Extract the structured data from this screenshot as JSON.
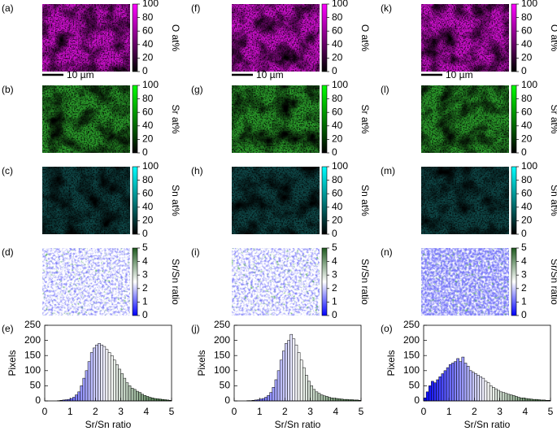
{
  "maps": {
    "panel_letters": [
      [
        "(a)",
        "(b)",
        "(c)",
        "(d)"
      ],
      [
        "(f)",
        "(g)",
        "(h)",
        "(i)"
      ],
      [
        "(k)",
        "(l)",
        "(m)",
        "(n)"
      ]
    ],
    "scale_bar": "10 µm",
    "colorbars": [
      {
        "label": "O at%",
        "range": [
          0,
          100
        ],
        "ticks": [
          0,
          20,
          40,
          60,
          80,
          100
        ],
        "colors": [
          "#000000",
          "#ff00ff"
        ]
      },
      {
        "label": "Sr at%",
        "range": [
          0,
          100
        ],
        "ticks": [
          0,
          20,
          40,
          60,
          80,
          100
        ],
        "colors": [
          "#000000",
          "#00ff00"
        ]
      },
      {
        "label": "Sn at%",
        "range": [
          0,
          100
        ],
        "ticks": [
          0,
          20,
          40,
          60,
          80,
          100
        ],
        "colors": [
          "#000000",
          "#00ffff"
        ]
      },
      {
        "label": "Sr/Sn ratio",
        "range": [
          0,
          5
        ],
        "ticks": [
          0,
          1,
          2,
          3,
          4,
          5
        ],
        "colors": [
          "#0000ff",
          "#ffffff",
          "#1e5a1e"
        ]
      }
    ]
  },
  "chart_data": [
    {
      "type": "histogram",
      "panel": "(e)",
      "xlabel": "Sr/Sn ratio",
      "ylabel": "Pixels",
      "bins": [
        0,
        0.1,
        0.2,
        0.3,
        0.4,
        0.5,
        0.6,
        0.7,
        0.8,
        0.9,
        1,
        1.1,
        1.2,
        1.3,
        1.4,
        1.5,
        1.6,
        1.7,
        1.8,
        1.9,
        2,
        2.1,
        2.2,
        2.3,
        2.4,
        2.5,
        2.6,
        2.7,
        2.8,
        2.9,
        3,
        3.1,
        3.2,
        3.3,
        3.4,
        3.5,
        3.6,
        3.7,
        3.8,
        3.9,
        4,
        4.1,
        4.2,
        4.3,
        4.4,
        4.5,
        4.6,
        4.7,
        4.8,
        4.9,
        5
      ],
      "counts": [
        0,
        0,
        0,
        0,
        0,
        1,
        2,
        3,
        4,
        5,
        8,
        12,
        20,
        30,
        50,
        75,
        100,
        130,
        160,
        175,
        185,
        190,
        185,
        180,
        170,
        160,
        150,
        135,
        120,
        105,
        90,
        75,
        60,
        50,
        42,
        38,
        32,
        28,
        22,
        18,
        15,
        12,
        10,
        8,
        7,
        6,
        5,
        4,
        3,
        2
      ],
      "xlim": [
        0,
        5
      ],
      "ylim": [
        0,
        250
      ],
      "xticks": [
        0,
        1,
        2,
        3,
        4,
        5
      ],
      "yticks": [
        0,
        50,
        100,
        150,
        200,
        250
      ],
      "colormap": [
        "#0000ff",
        "#ffffff",
        "#1e5a1e"
      ]
    },
    {
      "type": "histogram",
      "panel": "(j)",
      "xlabel": "Sr/Sn ratio",
      "ylabel": "Pixels",
      "bins": [
        0,
        0.1,
        0.2,
        0.3,
        0.4,
        0.5,
        0.6,
        0.7,
        0.8,
        0.9,
        1,
        1.1,
        1.2,
        1.3,
        1.4,
        1.5,
        1.6,
        1.7,
        1.8,
        1.9,
        2,
        2.1,
        2.2,
        2.3,
        2.4,
        2.5,
        2.6,
        2.7,
        2.8,
        2.9,
        3,
        3.1,
        3.2,
        3.3,
        3.4,
        3.5,
        3.6,
        3.7,
        3.8,
        3.9,
        4,
        4.1,
        4.2,
        4.3,
        4.4,
        4.5,
        4.6,
        4.7,
        4.8,
        4.9,
        5
      ],
      "counts": [
        0,
        0,
        0,
        0,
        0,
        1,
        1,
        2,
        3,
        4,
        6,
        8,
        12,
        18,
        28,
        45,
        70,
        100,
        135,
        165,
        190,
        200,
        220,
        205,
        185,
        160,
        135,
        110,
        85,
        65,
        50,
        38,
        30,
        25,
        20,
        17,
        15,
        12,
        10,
        9,
        8,
        7,
        6,
        5,
        5,
        4,
        4,
        3,
        3,
        2
      ],
      "xlim": [
        0,
        5
      ],
      "ylim": [
        0,
        250
      ],
      "xticks": [
        0,
        1,
        2,
        3,
        4,
        5
      ],
      "yticks": [
        0,
        50,
        100,
        150,
        200,
        250
      ],
      "colormap": [
        "#0000ff",
        "#ffffff",
        "#1e5a1e"
      ]
    },
    {
      "type": "histogram",
      "panel": "(o)",
      "xlabel": "Sr/Sn ratio",
      "ylabel": "Pixels",
      "bins": [
        0,
        0.1,
        0.2,
        0.3,
        0.4,
        0.5,
        0.6,
        0.7,
        0.8,
        0.9,
        1,
        1.1,
        1.2,
        1.3,
        1.4,
        1.5,
        1.6,
        1.7,
        1.8,
        1.9,
        2,
        2.1,
        2.2,
        2.3,
        2.4,
        2.5,
        2.6,
        2.7,
        2.8,
        2.9,
        3,
        3.1,
        3.2,
        3.3,
        3.4,
        3.5,
        3.6,
        3.7,
        3.8,
        3.9,
        4,
        4.1,
        4.2,
        4.3,
        4.4,
        4.5,
        4.6,
        4.7,
        4.8,
        4.9,
        5
      ],
      "counts": [
        10,
        30,
        50,
        65,
        60,
        70,
        80,
        90,
        100,
        110,
        120,
        125,
        130,
        140,
        130,
        145,
        125,
        115,
        100,
        95,
        90,
        85,
        80,
        75,
        65,
        60,
        50,
        45,
        40,
        35,
        30,
        28,
        25,
        22,
        20,
        18,
        15,
        12,
        10,
        10,
        8,
        7,
        6,
        5,
        5,
        4,
        3,
        3,
        2,
        2
      ],
      "xlim": [
        0,
        5
      ],
      "ylim": [
        0,
        250
      ],
      "xticks": [
        0,
        1,
        2,
        3,
        4,
        5
      ],
      "yticks": [
        0,
        50,
        100,
        150,
        200,
        250
      ],
      "colormap": [
        "#0000ff",
        "#ffffff",
        "#1e5a1e"
      ]
    }
  ]
}
